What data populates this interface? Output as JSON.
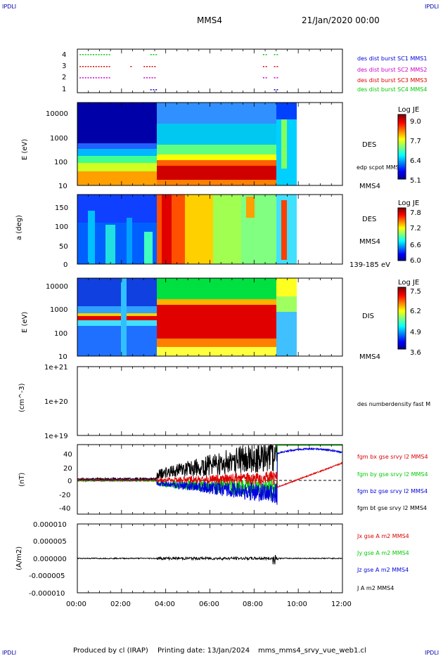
{
  "header": {
    "spacecraft": "MMS4",
    "date": "21/Jan/2020 00:00",
    "corner_tl": "IPDLI",
    "corner_tr": "IPDLI",
    "corner_bl": "IPDLI",
    "corner_br": "IPDLI"
  },
  "footer": {
    "produced": "Produced by cl (IRAP)",
    "printed": "Printing date: 13/Jan/2024",
    "script": "mms_mms4_srvy_vue_web1.cl"
  },
  "colors": {
    "red": "#dd0000",
    "green": "#00cc00",
    "blue": "#0000dd",
    "magenta": "#cc00cc",
    "black": "#000000"
  },
  "x_axis": {
    "ticks": [
      "00:00",
      "02:00",
      "04:00",
      "06:00",
      "08:00",
      "10:00",
      "12:00"
    ],
    "range_hours": [
      0,
      12
    ]
  },
  "chart_data": [
    {
      "type": "scatter",
      "panel": "burst-flags",
      "yticks": [
        "1",
        "2",
        "3",
        "4"
      ],
      "legend": [
        {
          "label": "des dist burst SC1 MMS1",
          "color": "#0000dd"
        },
        {
          "label": "des dist burst SC2 MMS2",
          "color": "#cc00cc"
        },
        {
          "label": "des dist burst SC3 MMS3",
          "color": "#dd0000"
        },
        {
          "label": "des dist burst SC4 MMS4",
          "color": "#00cc00"
        }
      ]
    },
    {
      "type": "heatmap",
      "panel": "des-energy",
      "ylabel": "E (eV)",
      "yticks": [
        "10",
        "100",
        "1000",
        "10000"
      ],
      "log_scale": true,
      "species": "DES",
      "overlay_label": "edp scpot MMS4",
      "bottom_label": "MMS4",
      "colorbar_title": "Log JE",
      "colorbar_ticks": [
        "9.0",
        "7.7",
        "6.4",
        "5.1"
      ]
    },
    {
      "type": "heatmap",
      "panel": "des-pitch",
      "ylabel": "a (deg)",
      "yticks": [
        "0",
        "50",
        "100",
        "150"
      ],
      "species": "DES",
      "side_label": "MMS4",
      "energy_label": "139-185 eV",
      "colorbar_title": "Log JE",
      "colorbar_ticks": [
        "7.8",
        "7.2",
        "6.6",
        "6.0"
      ]
    },
    {
      "type": "heatmap",
      "panel": "dis-energy",
      "ylabel": "E (eV)",
      "yticks": [
        "10",
        "100",
        "1000",
        "10000"
      ],
      "log_scale": true,
      "species": "DIS",
      "bottom_label": "MMS4",
      "colorbar_title": "Log JE",
      "colorbar_ticks": [
        "7.5",
        "6.2",
        "4.9",
        "3.6"
      ]
    },
    {
      "type": "line",
      "panel": "density",
      "ylabel": "(cm^-3)",
      "yticks": [
        "1e+19",
        "1e+20",
        "1e+21"
      ],
      "legend": [
        {
          "label": "des numberdensity fast M",
          "color": "#000000"
        }
      ]
    },
    {
      "type": "line",
      "panel": "magnetic-field",
      "ylabel": "(nT)",
      "yticks": [
        "-40",
        "-20",
        "0",
        "20",
        "40"
      ],
      "ylim": [
        -48,
        50
      ],
      "legend": [
        {
          "label": "fgm bx gse srvy l2 MMS4",
          "color": "#dd0000"
        },
        {
          "label": "fgm by gse srvy l2 MMS4",
          "color": "#00cc00"
        },
        {
          "label": "fgm bz gse srvy l2 MMS4",
          "color": "#0000dd"
        },
        {
          "label": "fgm bt gse srvy l2 MMS4",
          "color": "#000000"
        }
      ]
    },
    {
      "type": "line",
      "panel": "current-density",
      "ylabel": "(A/m2)",
      "yticks": [
        "-0.000010",
        "-0.000005",
        "0.000000",
        "0.000005",
        "0.000010"
      ],
      "ylim": [
        -1e-05,
        1e-05
      ],
      "legend": [
        {
          "label": "Jx gse A m2 MMS4",
          "color": "#dd0000"
        },
        {
          "label": "Jy gse A m2 MMS4",
          "color": "#00cc00"
        },
        {
          "label": "Jz gse A m2 MMS4",
          "color": "#0000dd"
        },
        {
          "label": "J A m2 MMS4",
          "color": "#000000"
        }
      ]
    }
  ]
}
